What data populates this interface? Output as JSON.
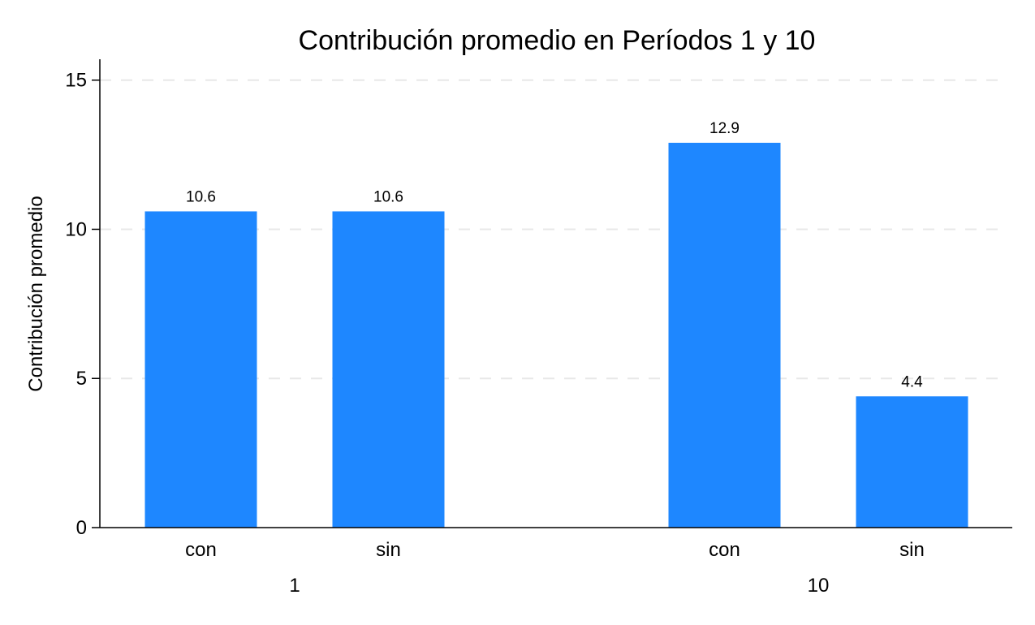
{
  "chart_data": {
    "type": "bar",
    "title": "Contribución promedio en Períodos 1 y 10",
    "ylabel": "Contribución promedio",
    "xlabel": "",
    "ylim": [
      0,
      15.7
    ],
    "yticks": [
      0,
      5,
      10,
      15
    ],
    "grid": true,
    "bar_color": "#1e87ff",
    "groups": [
      {
        "label": "1",
        "bars": [
          {
            "label": "con",
            "value": 10.6,
            "value_label": "10.6"
          },
          {
            "label": "sin",
            "value": 10.6,
            "value_label": "10.6"
          }
        ]
      },
      {
        "label": "10",
        "bars": [
          {
            "label": "con",
            "value": 12.9,
            "value_label": "12.9"
          },
          {
            "label": "sin",
            "value": 4.4,
            "value_label": "4.4"
          }
        ]
      }
    ]
  }
}
